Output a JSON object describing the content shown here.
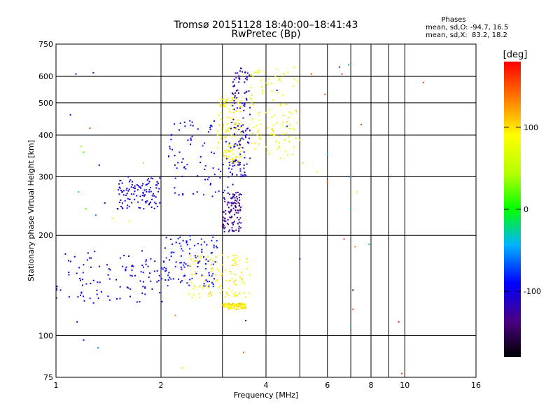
{
  "chart_data": {
    "type": "scatter",
    "title": "Tromsø 20151128 18:40:00–18:41:43",
    "subtitle": "RwPretec (Bp)",
    "xlabel": "Frequency [MHz]",
    "ylabel": "Stationary phase Virtual Height [km]",
    "x_scale": "log",
    "y_scale": "log",
    "xlim": [
      1,
      16
    ],
    "ylim": [
      75,
      750
    ],
    "x_ticks": [
      1,
      2,
      4,
      6,
      8,
      10,
      16
    ],
    "x_tick_labels": [
      "1",
      "2",
      "4",
      "6",
      "8",
      "10",
      "16"
    ],
    "x_grid": [
      1,
      2,
      3,
      4,
      5,
      6,
      7,
      8,
      9,
      10
    ],
    "y_ticks": [
      75,
      100,
      200,
      300,
      400,
      500,
      600,
      750
    ],
    "y_tick_labels": [
      "75",
      "100",
      "200",
      "300",
      "400",
      "500",
      "600",
      "750"
    ],
    "y_grid": [
      100,
      200,
      300,
      400,
      500,
      600
    ],
    "grid": true,
    "stats": {
      "heading": "Phases",
      "line1": "mean, sd,O: -94.7, 16.5",
      "line2": "mean, sd,X:  83.2, 18.2"
    },
    "colorbar": {
      "unit": "[deg]",
      "range": [
        -180,
        180
      ],
      "ticks": [
        100,
        0,
        -100
      ],
      "tick_labels": [
        "100",
        "0",
        "-100"
      ]
    },
    "series": [
      {
        "component": "O",
        "phase_mean": -94.7,
        "phase_sd": 16.5,
        "clusters": [
          {
            "x": [
              1.0,
              2.05
            ],
            "y": [
              125,
              180
            ],
            "phase": -100
          },
          {
            "x": [
              2.05,
              2.9
            ],
            "y": [
              140,
              200
            ],
            "phase": -90
          },
          {
            "x": [
              1.5,
              2.0
            ],
            "y": [
              240,
              300
            ],
            "phase": -105
          },
          {
            "x": [
              2.1,
              3.5
            ],
            "y": [
              260,
              450
            ],
            "phase": -95
          },
          {
            "x": [
              3.2,
              3.6
            ],
            "y": [
              300,
              640
            ],
            "phase": -115
          },
          {
            "x": [
              3.0,
              3.4
            ],
            "y": [
              205,
              270
            ],
            "phase": -130
          }
        ]
      },
      {
        "component": "X",
        "phase_mean": 83.2,
        "phase_sd": 18.2,
        "clusters": [
          {
            "x": [
              2.4,
              3.6
            ],
            "y": [
              130,
              175
            ],
            "phase": 90
          },
          {
            "x": [
              3.0,
              3.5
            ],
            "y": [
              120,
              125
            ],
            "phase": 95
          },
          {
            "x": [
              2.9,
              3.4
            ],
            "y": [
              330,
              520
            ],
            "phase": 90
          },
          {
            "x": [
              3.6,
              5.0
            ],
            "y": [
              340,
              640
            ],
            "phase": 85
          }
        ]
      }
    ],
    "scattered_points": [
      {
        "x": 1.1,
        "y": 460,
        "phase": -100
      },
      {
        "x": 1.14,
        "y": 610,
        "phase": -80
      },
      {
        "x": 1.28,
        "y": 615,
        "phase": -110
      },
      {
        "x": 1.18,
        "y": 370,
        "phase": 30
      },
      {
        "x": 1.2,
        "y": 355,
        "phase": 10
      },
      {
        "x": 1.25,
        "y": 420,
        "phase": 150
      },
      {
        "x": 1.33,
        "y": 325,
        "phase": -100
      },
      {
        "x": 1.16,
        "y": 270,
        "phase": -40
      },
      {
        "x": 1.22,
        "y": 240,
        "phase": 20
      },
      {
        "x": 1.3,
        "y": 230,
        "phase": -60
      },
      {
        "x": 1.38,
        "y": 250,
        "phase": -110
      },
      {
        "x": 1.45,
        "y": 225,
        "phase": 60
      },
      {
        "x": 1.15,
        "y": 110,
        "phase": -110
      },
      {
        "x": 1.2,
        "y": 97,
        "phase": -90
      },
      {
        "x": 1.32,
        "y": 92,
        "phase": -50
      },
      {
        "x": 1.62,
        "y": 220,
        "phase": 90
      },
      {
        "x": 1.78,
        "y": 330,
        "phase": 110
      },
      {
        "x": 2.2,
        "y": 115,
        "phase": 130
      },
      {
        "x": 2.3,
        "y": 80,
        "phase": 100
      },
      {
        "x": 3.5,
        "y": 111,
        "phase": -130
      },
      {
        "x": 3.45,
        "y": 89,
        "phase": 140
      },
      {
        "x": 4.3,
        "y": 545,
        "phase": -110
      },
      {
        "x": 4.6,
        "y": 425,
        "phase": -80
      },
      {
        "x": 5.0,
        "y": 170,
        "phase": -100
      },
      {
        "x": 5.1,
        "y": 330,
        "phase": 110
      },
      {
        "x": 5.4,
        "y": 610,
        "phase": 150
      },
      {
        "x": 5.6,
        "y": 310,
        "phase": 80
      },
      {
        "x": 5.9,
        "y": 530,
        "phase": 150
      },
      {
        "x": 6.0,
        "y": 350,
        "phase": -40
      },
      {
        "x": 6.0,
        "y": 290,
        "phase": 150
      },
      {
        "x": 6.5,
        "y": 640,
        "phase": -80
      },
      {
        "x": 6.6,
        "y": 610,
        "phase": 160
      },
      {
        "x": 6.7,
        "y": 195,
        "phase": 160
      },
      {
        "x": 6.9,
        "y": 650,
        "phase": -30
      },
      {
        "x": 7.0,
        "y": 300,
        "phase": -50
      },
      {
        "x": 7.0,
        "y": 240,
        "phase": -20
      },
      {
        "x": 7.1,
        "y": 137,
        "phase": -130
      },
      {
        "x": 7.1,
        "y": 120,
        "phase": 150
      },
      {
        "x": 7.0,
        "y": 107,
        "phase": -20
      },
      {
        "x": 7.2,
        "y": 185,
        "phase": 130
      },
      {
        "x": 7.3,
        "y": 270,
        "phase": 60
      },
      {
        "x": 7.5,
        "y": 430,
        "phase": 150
      },
      {
        "x": 7.9,
        "y": 188,
        "phase": -30
      },
      {
        "x": 9.6,
        "y": 110,
        "phase": 170
      },
      {
        "x": 9.8,
        "y": 77,
        "phase": 160
      },
      {
        "x": 11.3,
        "y": 575,
        "phase": 160
      }
    ]
  }
}
